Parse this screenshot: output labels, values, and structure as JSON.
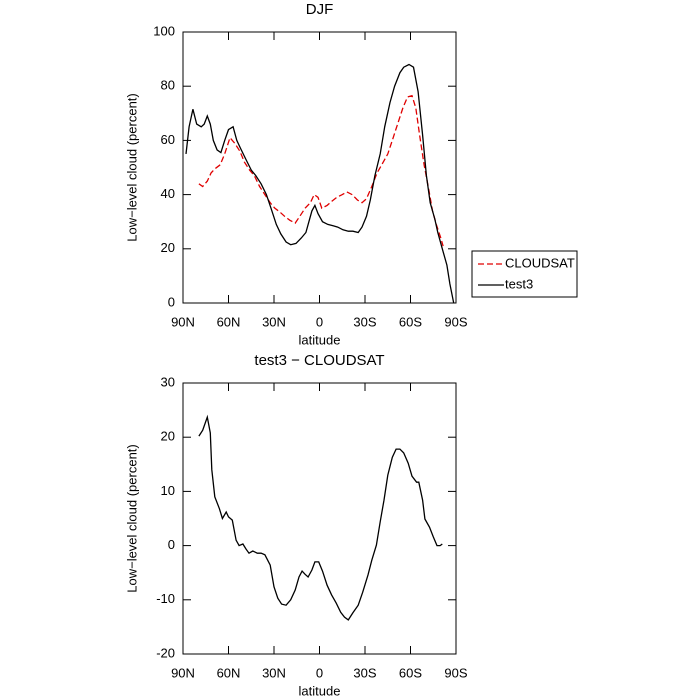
{
  "chart_data": [
    {
      "type": "line",
      "title": "DJF",
      "xlabel": "latitude",
      "ylabel": "Low−level cloud (percent)",
      "xlim": [
        90,
        -90
      ],
      "xticks": [
        {
          "value": 90,
          "label": "90N"
        },
        {
          "value": 60,
          "label": "60N"
        },
        {
          "value": 30,
          "label": "30N"
        },
        0,
        {
          "value": -30,
          "label": "30S"
        },
        {
          "value": -60,
          "label": "60S"
        },
        {
          "value": -90,
          "label": "90S"
        }
      ],
      "ylim": [
        0,
        100
      ],
      "yticks": [
        0,
        20,
        40,
        60,
        80,
        100
      ],
      "legend": "right",
      "series": [
        {
          "name": "CLOUDSAT",
          "color": "#e00000",
          "dashed": true,
          "x": [
            79.5,
            77,
            74,
            71.5,
            69,
            65.5,
            62.5,
            59,
            56,
            52.5,
            49.5,
            46,
            43,
            39.5,
            36,
            32.5,
            29.5,
            26,
            23,
            19.5,
            16,
            13,
            9.5,
            6,
            3.5,
            1,
            -1.5,
            -5,
            -8,
            -11.5,
            -15,
            -18,
            -21.5,
            -25,
            -28,
            -31,
            -34.5,
            -38,
            -41,
            -45,
            -48,
            -51.5,
            -55,
            -58,
            -61,
            -63.5,
            -66,
            -69,
            -72,
            -74.5,
            -77,
            -80,
            -81.5
          ],
          "values": [
            44,
            43,
            45,
            48,
            49.5,
            51,
            55,
            61,
            59,
            56,
            52,
            49,
            47,
            43,
            40,
            37,
            35,
            33.5,
            32,
            30.5,
            29.5,
            32,
            35,
            37,
            40,
            39,
            35,
            36,
            37.5,
            39,
            40,
            41,
            40,
            38,
            37,
            38.5,
            43,
            48,
            51,
            55,
            60,
            66,
            72,
            76,
            76.5,
            72,
            62,
            51,
            42,
            34,
            29,
            24,
            21
          ]
        },
        {
          "name": "test3",
          "color": "#000000",
          "dashed": false,
          "x": [
            88,
            86,
            83.5,
            81,
            78,
            76,
            74,
            72,
            70,
            67.5,
            65,
            62.5,
            60,
            57,
            54.5,
            52,
            48.5,
            45,
            42,
            38.5,
            35,
            32,
            28.5,
            25.5,
            22,
            19,
            15.5,
            12,
            9,
            7,
            5,
            3,
            1,
            -2,
            -5.5,
            -9,
            -12,
            -15.5,
            -19,
            -22,
            -25.5,
            -28,
            -31,
            -33.5,
            -36.5,
            -40,
            -43,
            -46.5,
            -49.5,
            -53,
            -55.5,
            -59,
            -62,
            -65,
            -68,
            -70.5,
            -73,
            -76,
            -78,
            -81,
            -84,
            -86,
            -88.5
          ],
          "values": [
            55,
            65,
            71.5,
            66,
            65,
            66,
            69,
            66,
            60,
            56.5,
            55.5,
            60,
            64,
            65,
            60,
            57,
            53,
            49,
            47,
            44,
            40,
            35,
            29,
            25.5,
            22.5,
            21.5,
            22,
            24,
            26,
            30,
            34,
            36,
            33,
            30,
            29,
            28.5,
            28,
            27,
            26.5,
            26.5,
            26,
            28,
            32,
            38,
            47,
            55,
            65,
            74,
            80,
            85,
            87,
            88,
            87,
            78,
            62,
            47,
            37,
            31,
            26,
            20,
            14,
            7,
            0
          ]
        }
      ]
    },
    {
      "type": "line",
      "title": "test3 − CLOUDSAT",
      "xlabel": "latitude",
      "ylabel": "Low−level cloud (percent)",
      "xlim": [
        90,
        -90
      ],
      "xticks": [
        {
          "value": 90,
          "label": "90N"
        },
        {
          "value": 60,
          "label": "60N"
        },
        {
          "value": 30,
          "label": "30N"
        },
        0,
        {
          "value": -30,
          "label": "30S"
        },
        {
          "value": -60,
          "label": "60S"
        },
        {
          "value": -90,
          "label": "90S"
        }
      ],
      "ylim": [
        -20,
        30
      ],
      "yticks": [
        -20,
        -10,
        0,
        10,
        20,
        30
      ],
      "series": [
        {
          "color": "#000000",
          "dashed": false,
          "x": [
            79.5,
            77,
            74,
            72,
            71,
            69,
            66,
            64,
            61.5,
            60,
            57.5,
            55,
            53,
            50.5,
            48.5,
            46.5,
            44,
            41,
            38.5,
            36,
            32.5,
            30,
            27.5,
            25,
            22,
            19,
            16,
            13.5,
            11.5,
            9.5,
            7.5,
            5,
            3,
            0.5,
            -2,
            -5,
            -8,
            -11,
            -14,
            -16.5,
            -19,
            -22,
            -25.5,
            -28.5,
            -32,
            -34.5,
            -37.5,
            -40,
            -42.5,
            -45,
            -48,
            -50.5,
            -53,
            -55.5,
            -58.5,
            -61,
            -64,
            -65.5,
            -68,
            -69.5,
            -72.5,
            -75,
            -77.5,
            -79.5,
            -81
          ],
          "values": [
            20.2,
            21.3,
            23.7,
            20.8,
            14,
            9,
            6.8,
            5,
            6.2,
            5.3,
            4.7,
            1,
            0,
            0.3,
            -0.6,
            -1.4,
            -1,
            -1.4,
            -1.4,
            -1.7,
            -3.6,
            -7.6,
            -9.7,
            -10.8,
            -11,
            -10,
            -8.2,
            -5.8,
            -4.7,
            -5.3,
            -5.8,
            -4.5,
            -3,
            -3,
            -4.7,
            -7.3,
            -9.1,
            -10.6,
            -12.3,
            -13.2,
            -13.7,
            -12.4,
            -11,
            -8.6,
            -5.4,
            -2.7,
            0.1,
            4.4,
            8.4,
            13,
            16.3,
            17.8,
            17.8,
            17.1,
            15.2,
            12.8,
            11.7,
            11.7,
            8.4,
            4.9,
            3.4,
            1.6,
            0,
            0,
            0.3
          ]
        }
      ]
    }
  ]
}
